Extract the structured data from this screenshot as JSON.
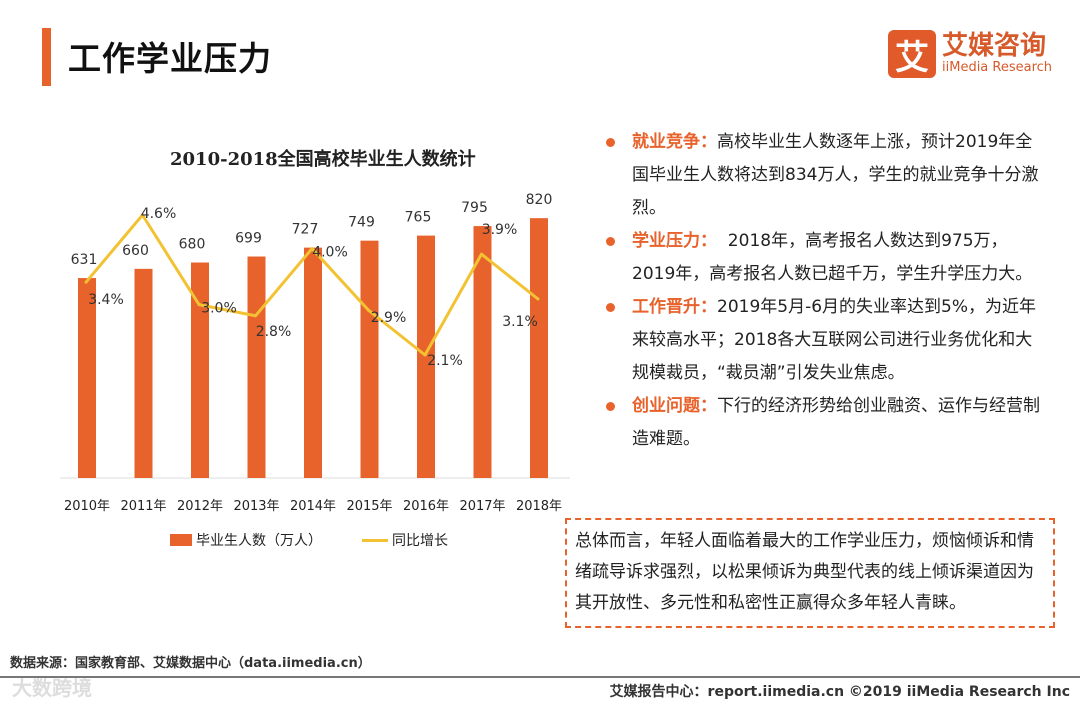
{
  "header": {
    "title": "工作学业压力"
  },
  "logo": {
    "mark": "艾",
    "name_cn": "艾媒咨询",
    "name_en": "iiMedia Research"
  },
  "chart_data": {
    "type": "bar",
    "title": "2010-2018全国高校毕业生人数统计",
    "categories": [
      "2010年",
      "2011年",
      "2012年",
      "2013年",
      "2014年",
      "2015年",
      "2016年",
      "2017年",
      "2018年"
    ],
    "series": [
      {
        "name": "毕业生人数（万人）",
        "type": "bar",
        "color": "#e8622c",
        "values": [
          631,
          660,
          680,
          699,
          727,
          749,
          765,
          795,
          820
        ],
        "labels": [
          "631",
          "660",
          "680",
          "699",
          "727",
          "749",
          "765",
          "795",
          "820"
        ]
      },
      {
        "name": "同比增长",
        "type": "line",
        "color": "#f2c232",
        "values": [
          3.4,
          4.6,
          3.0,
          2.8,
          4.0,
          2.9,
          2.1,
          3.9,
          3.1
        ],
        "labels": [
          "3.4%",
          "4.6%",
          "3.0%",
          "2.8%",
          "4.0%",
          "2.9%",
          "2.1%",
          "3.9%",
          "3.1%"
        ]
      }
    ],
    "ylim": [
      0,
      830
    ],
    "y2lim": [
      0,
      8.4
    ],
    "grid": false,
    "legend": "bottom"
  },
  "bullets": [
    {
      "key": "就业竞争：",
      "text": "高校毕业生人数逐年上涨，预计2019年全国毕业生人数将达到834万人，学生的就业竞争十分激烈。"
    },
    {
      "key": "学业压力：",
      "text": "  2018年，高考报名人数达到975万，2019年，高考报名人数已超千万，学生升学压力大。"
    },
    {
      "key": "工作晋升：",
      "text": "2019年5月-6月的失业率达到5%，为近年来较高水平；2018各大互联网公司进行业务优化和大规模裁员，“裁员潮”引发失业焦虑。"
    },
    {
      "key": "创业问题：",
      "text": "下行的经济形势给创业融资、运作与经营制造难题。"
    }
  ],
  "summary": "总体而言，年轻人面临着最大的工作学业压力，烦恼倾诉和情绪疏导诉求强烈，以松果倾诉为典型代表的线上倾诉渠道因为其开放性、多元性和私密性正赢得众多年轻人青睐。",
  "source": "数据来源：国家教育部、艾媒数据中心（data.iimedia.cn）",
  "footer": "艾媒报告中心：report.iimedia.cn   ©2019  iiMedia Research  Inc",
  "watermark": "大数跨境"
}
